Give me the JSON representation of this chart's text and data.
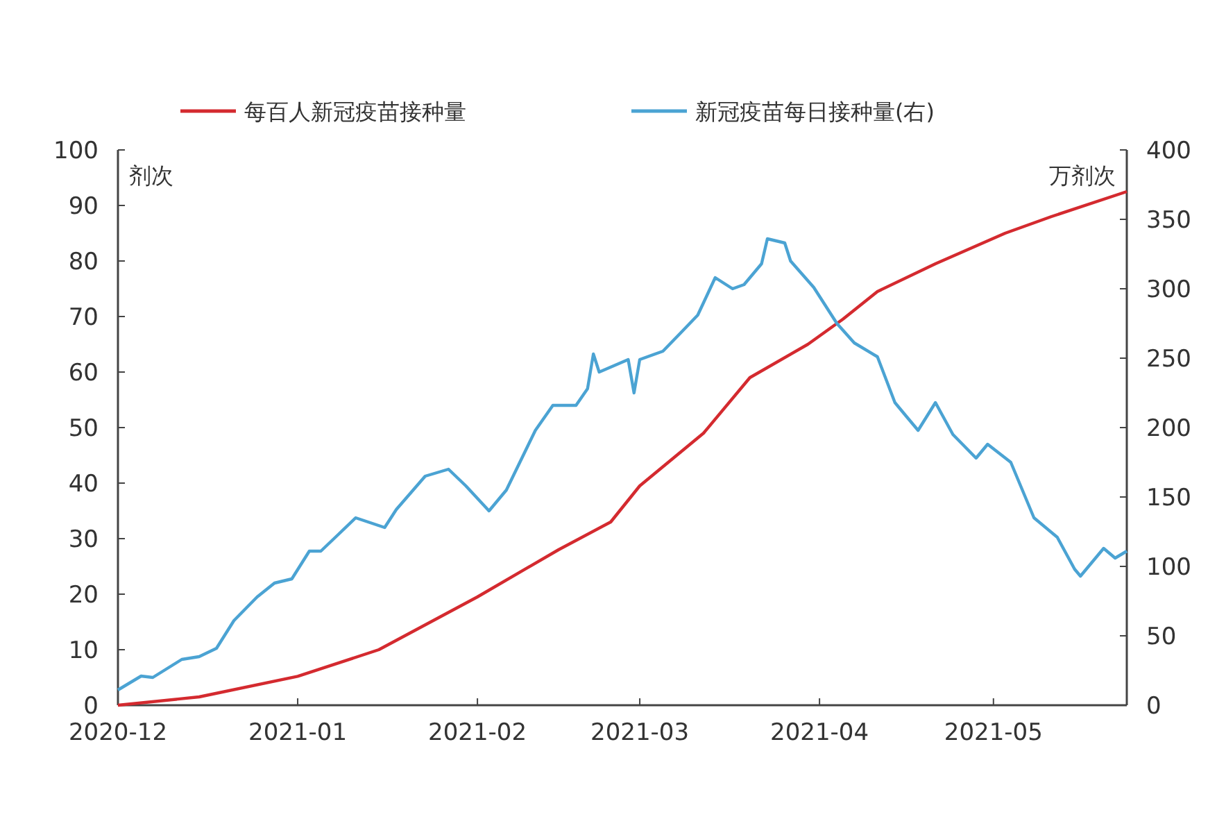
{
  "chart_data": {
    "type": "line",
    "ylabel": "剂次",
    "y2label": "万剂次",
    "legend": "top",
    "grid": false,
    "marker": "none",
    "line_style": "solid",
    "xlim": [
      "2020-12-01",
      "2021-05-24"
    ],
    "xticks": [
      "2020-12",
      "2021-01",
      "2021-02",
      "2021-03",
      "2021-04",
      "2021-05"
    ],
    "ylim": [
      0,
      100
    ],
    "yticks": [
      0,
      10,
      20,
      30,
      40,
      50,
      60,
      70,
      80,
      90,
      100
    ],
    "y2lim": [
      0,
      400
    ],
    "y2ticks": [
      0,
      50,
      100,
      150,
      200,
      250,
      300,
      350,
      400
    ],
    "series": [
      {
        "name": "每百人新冠疫苗接种量",
        "color": "#d42a2f",
        "x": [
          "2020-12-01",
          "2020-12-15",
          "2021-01-01",
          "2021-01-15",
          "2021-02-01",
          "2021-02-15",
          "2021-02-24",
          "2021-03-01",
          "2021-03-12",
          "2021-03-20",
          "2021-03-30",
          "2021-04-05",
          "2021-04-11",
          "2021-04-21",
          "2021-05-03",
          "2021-05-11",
          "2021-05-24"
        ],
        "values": [
          0,
          1.5,
          5.2,
          10,
          19.5,
          28,
          33,
          39.5,
          49,
          59,
          65,
          69.5,
          74.5,
          79.5,
          85,
          88,
          92.5
        ]
      },
      {
        "name": "新冠疫苗每日接种量(右)",
        "color": "#4ba3d3",
        "axis": "y2",
        "x": [
          "2020-12-01",
          "2020-12-05",
          "2020-12-07",
          "2020-12-12",
          "2020-12-15",
          "2020-12-18",
          "2020-12-21",
          "2020-12-25",
          "2020-12-28",
          "2020-12-31",
          "2021-01-03",
          "2021-01-05",
          "2021-01-08",
          "2021-01-11",
          "2021-01-16",
          "2021-01-18",
          "2021-01-23",
          "2021-01-27",
          "2021-01-30",
          "2021-02-03",
          "2021-02-06",
          "2021-02-11",
          "2021-02-14",
          "2021-02-18",
          "2021-02-20",
          "2021-02-21",
          "2021-02-22",
          "2021-02-27",
          "2021-02-28",
          "2021-03-01",
          "2021-03-05",
          "2021-03-08",
          "2021-03-11",
          "2021-03-14",
          "2021-03-17",
          "2021-03-19",
          "2021-03-22",
          "2021-03-23",
          "2021-03-26",
          "2021-03-27",
          "2021-03-31",
          "2021-04-04",
          "2021-04-07",
          "2021-04-11",
          "2021-04-14",
          "2021-04-16",
          "2021-04-18",
          "2021-04-21",
          "2021-04-24",
          "2021-04-28",
          "2021-04-30",
          "2021-05-04",
          "2021-05-08",
          "2021-05-12",
          "2021-05-15",
          "2021-05-16",
          "2021-05-20",
          "2021-05-22",
          "2021-05-24"
        ],
        "values": [
          11,
          21,
          20,
          33,
          35,
          41,
          61,
          78,
          88,
          91,
          111,
          111,
          123,
          135,
          128,
          141,
          165,
          170,
          158,
          140,
          155,
          198,
          216,
          216,
          228,
          253,
          240,
          249,
          225,
          249,
          255,
          268,
          281,
          308,
          300,
          303,
          318,
          336,
          333,
          320,
          301,
          275,
          261,
          251,
          218,
          208,
          198,
          218,
          195,
          178,
          188,
          175,
          135,
          121,
          98,
          93,
          113,
          106,
          111
        ]
      }
    ]
  }
}
